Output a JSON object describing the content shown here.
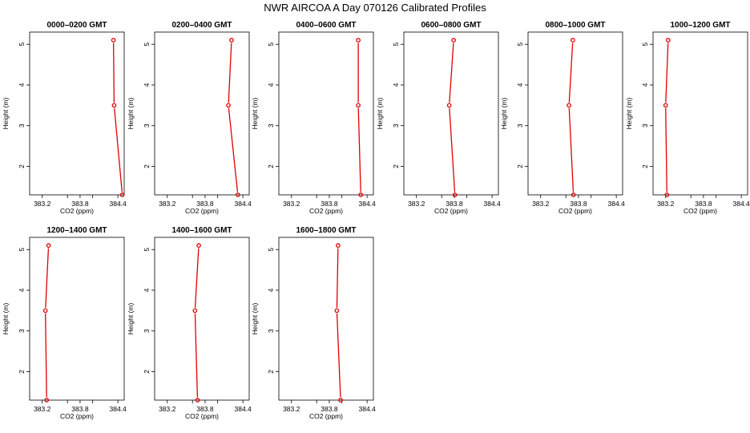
{
  "figure": {
    "title": "NWR AIRCOA A  Day 070126  Calibrated Profiles"
  },
  "chart_data": [
    {
      "type": "line",
      "title": "0000–0200 GMT",
      "xlabel": "CO2 (ppm)",
      "ylabel": "Height (m)",
      "xlim": [
        383.0,
        384.5
      ],
      "ylim": [
        1.3,
        5.3
      ],
      "xticks": [
        383.2,
        383.6,
        383.8,
        384.0,
        384.4
      ],
      "xticklabels": [
        "383.2",
        "",
        "383.8",
        "",
        "384.4"
      ],
      "yticks": [
        2,
        3,
        4,
        5
      ],
      "series": [
        {
          "x": [
            384.47,
            384.34,
            384.33
          ],
          "y": [
            1.3,
            3.5,
            5.1
          ]
        }
      ]
    },
    {
      "type": "line",
      "title": "0200–0400 GMT",
      "xlabel": "CO2 (ppm)",
      "ylabel": "Height (m)",
      "xlim": [
        383.0,
        384.5
      ],
      "ylim": [
        1.3,
        5.3
      ],
      "xticks": [
        383.2,
        383.6,
        383.8,
        384.0,
        384.4
      ],
      "xticklabels": [
        "383.2",
        "",
        "383.8",
        "",
        "384.4"
      ],
      "yticks": [
        2,
        3,
        4,
        5
      ],
      "series": [
        {
          "x": [
            384.32,
            384.17,
            384.22
          ],
          "y": [
            1.3,
            3.5,
            5.1
          ]
        }
      ]
    },
    {
      "type": "line",
      "title": "0400–0600 GMT",
      "xlabel": "CO2 (ppm)",
      "ylabel": "Height (m)",
      "xlim": [
        383.0,
        384.5
      ],
      "ylim": [
        1.3,
        5.3
      ],
      "xticks": [
        383.2,
        383.6,
        383.8,
        384.0,
        384.4
      ],
      "xticklabels": [
        "383.2",
        "",
        "383.8",
        "",
        "384.4"
      ],
      "yticks": [
        2,
        3,
        4,
        5
      ],
      "series": [
        {
          "x": [
            384.3,
            384.26,
            384.26
          ],
          "y": [
            1.3,
            3.5,
            5.1
          ]
        }
      ]
    },
    {
      "type": "line",
      "title": "0600–0800 GMT",
      "xlabel": "CO2 (ppm)",
      "ylabel": "Height (m)",
      "xlim": [
        383.0,
        384.5
      ],
      "ylim": [
        1.3,
        5.3
      ],
      "xticks": [
        383.2,
        383.6,
        383.8,
        384.0,
        384.4
      ],
      "xticklabels": [
        "383.2",
        "",
        "383.8",
        "",
        "384.4"
      ],
      "yticks": [
        2,
        3,
        4,
        5
      ],
      "series": [
        {
          "x": [
            383.81,
            383.72,
            383.79
          ],
          "y": [
            1.3,
            3.5,
            5.1
          ]
        }
      ]
    },
    {
      "type": "line",
      "title": "0800–1000 GMT",
      "xlabel": "CO2 (ppm)",
      "ylabel": "Height (m)",
      "xlim": [
        383.0,
        384.5
      ],
      "ylim": [
        1.3,
        5.3
      ],
      "xticks": [
        383.2,
        383.6,
        383.8,
        384.0,
        384.4
      ],
      "xticklabels": [
        "383.2",
        "",
        "383.8",
        "",
        "384.4"
      ],
      "yticks": [
        2,
        3,
        4,
        5
      ],
      "series": [
        {
          "x": [
            383.72,
            383.65,
            383.71
          ],
          "y": [
            1.3,
            3.5,
            5.1
          ]
        }
      ]
    },
    {
      "type": "line",
      "title": "1000–1200 GMT",
      "xlabel": "CO2 (ppm)",
      "ylabel": "Height (m)",
      "xlim": [
        383.0,
        384.5
      ],
      "ylim": [
        1.3,
        5.3
      ],
      "xticks": [
        383.2,
        383.6,
        383.8,
        384.0,
        384.4
      ],
      "xticklabels": [
        "383.2",
        "",
        "383.8",
        "",
        "384.4"
      ],
      "yticks": [
        2,
        3,
        4,
        5
      ],
      "series": [
        {
          "x": [
            383.22,
            383.2,
            383.24
          ],
          "y": [
            1.3,
            3.5,
            5.1
          ]
        }
      ]
    },
    {
      "type": "line",
      "title": "1200–1400 GMT",
      "xlabel": "CO2 (ppm)",
      "ylabel": "Height (m)",
      "xlim": [
        383.0,
        384.5
      ],
      "ylim": [
        1.3,
        5.3
      ],
      "xticks": [
        383.2,
        383.6,
        383.8,
        384.0,
        384.4
      ],
      "xticklabels": [
        "383.2",
        "",
        "383.8",
        "",
        "384.4"
      ],
      "yticks": [
        2,
        3,
        4,
        5
      ],
      "series": [
        {
          "x": [
            383.27,
            383.25,
            383.3
          ],
          "y": [
            1.3,
            3.5,
            5.1
          ]
        }
      ]
    },
    {
      "type": "line",
      "title": "1400–1600 GMT",
      "xlabel": "CO2 (ppm)",
      "ylabel": "Height (m)",
      "xlim": [
        383.0,
        384.5
      ],
      "ylim": [
        1.3,
        5.3
      ],
      "xticks": [
        383.2,
        383.6,
        383.8,
        384.0,
        384.4
      ],
      "xticklabels": [
        "383.2",
        "",
        "383.8",
        "",
        "384.4"
      ],
      "yticks": [
        2,
        3,
        4,
        5
      ],
      "series": [
        {
          "x": [
            383.68,
            383.64,
            383.7
          ],
          "y": [
            1.3,
            3.5,
            5.1
          ]
        }
      ]
    },
    {
      "type": "line",
      "title": "1600–1800 GMT",
      "xlabel": "CO2 (ppm)",
      "ylabel": "Height (m)",
      "xlim": [
        383.0,
        384.5
      ],
      "ylim": [
        1.3,
        5.3
      ],
      "xticks": [
        383.2,
        383.6,
        383.8,
        384.0,
        384.4
      ],
      "xticklabels": [
        "383.2",
        "",
        "383.8",
        "",
        "384.4"
      ],
      "yticks": [
        2,
        3,
        4,
        5
      ],
      "series": [
        {
          "x": [
            383.98,
            383.92,
            383.94
          ],
          "y": [
            1.3,
            3.5,
            5.1
          ]
        }
      ]
    }
  ],
  "style": {
    "line_color": "#e00000",
    "marker_color": "#e00000",
    "axis_color": "#000000"
  }
}
